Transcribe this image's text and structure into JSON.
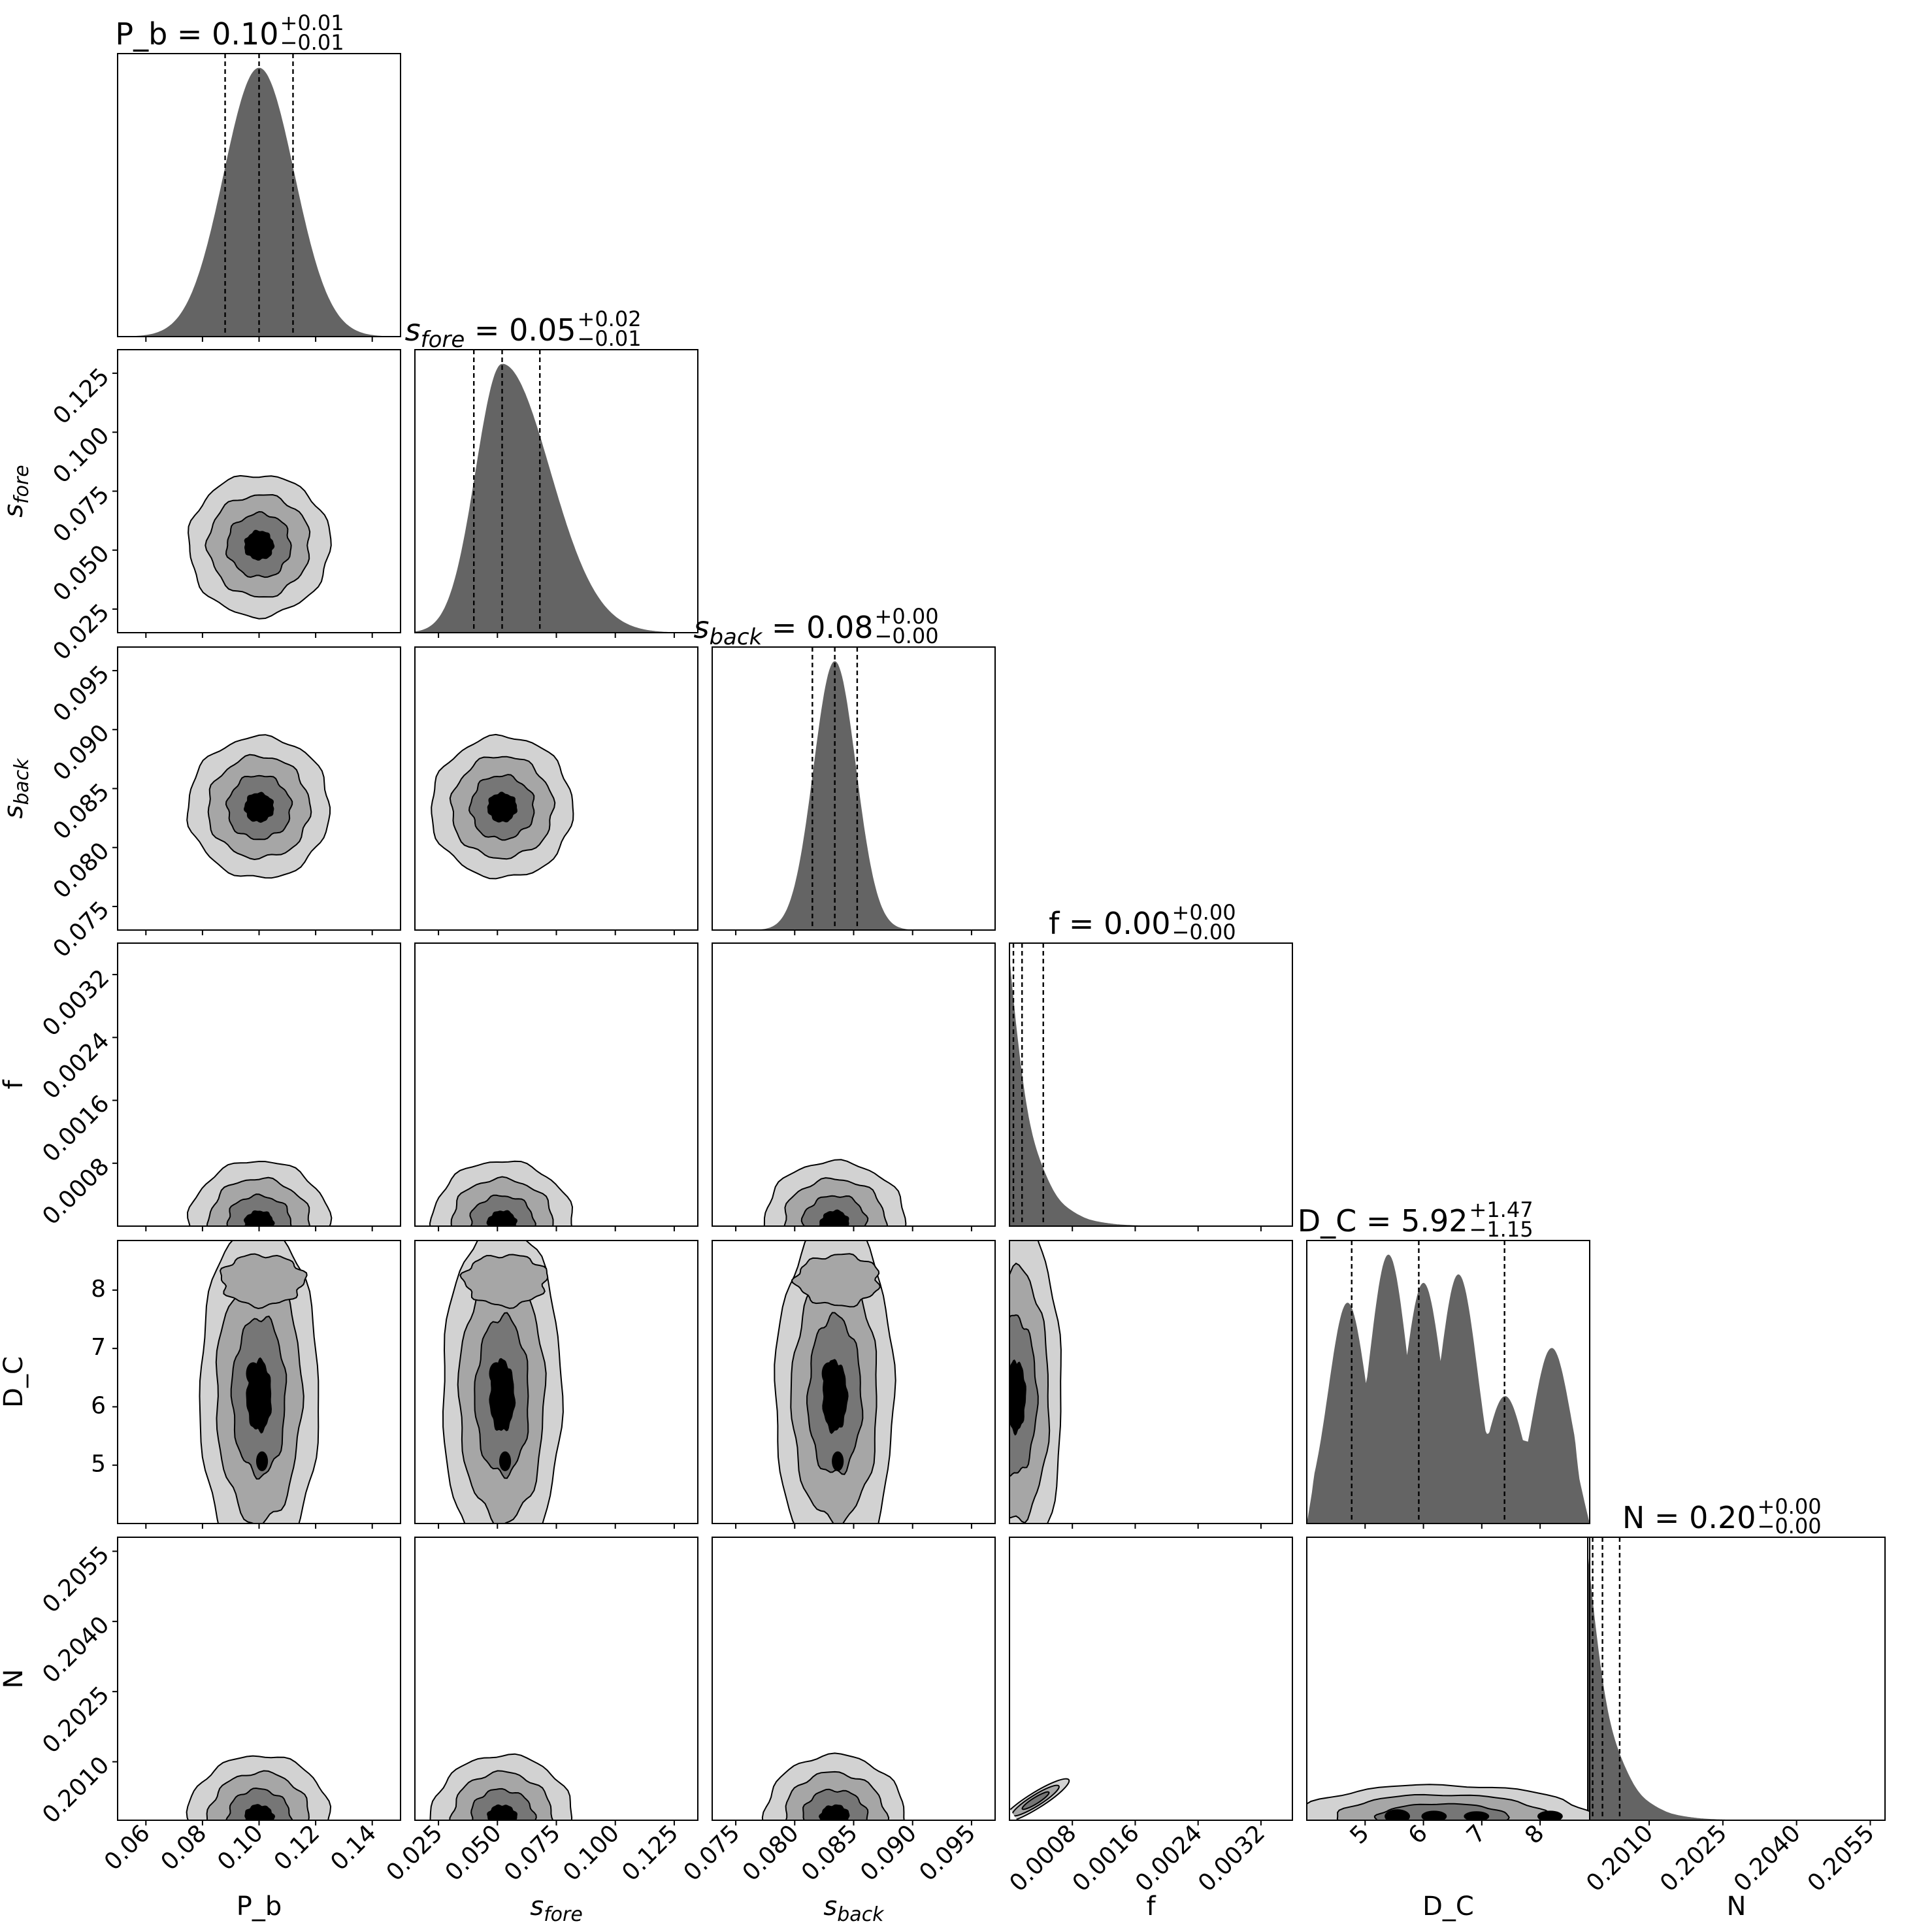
{
  "chart_data": {
    "type": "corner",
    "title": "",
    "colors": {
      "hist_fill": "#646464",
      "contour_levels": [
        "#d2d2d2",
        "#a6a6a6",
        "#767676",
        "#000000"
      ],
      "lines": "#000000",
      "background": "#ffffff"
    },
    "parameters": [
      {
        "key": "P_b",
        "label": "P_b",
        "sub": "",
        "title": {
          "name": "P_b",
          "value": "0.10",
          "plus": "+0.01",
          "minus": "−0.01"
        },
        "range": [
          0.05,
          0.15
        ],
        "ticks": [
          0.06,
          0.08,
          0.1,
          0.12,
          0.14
        ],
        "tick_labels": [
          "0.06",
          "0.08",
          "0.10",
          "0.12",
          "0.14"
        ],
        "quantiles": [
          0.088,
          0.1,
          0.112
        ],
        "mean": 0.1,
        "sd": 0.0125,
        "hist": "gauss"
      },
      {
        "key": "s_fore",
        "label": "s",
        "sub": "fore",
        "title": {
          "name": "s",
          "sub": "fore",
          "value": "0.05",
          "plus": "+0.02",
          "minus": "−0.01"
        },
        "range": [
          0.015,
          0.135
        ],
        "ticks": [
          0.025,
          0.05,
          0.075,
          0.1,
          0.125
        ],
        "tick_labels": [
          "0.025",
          "0.050",
          "0.075",
          "0.100",
          "0.125"
        ],
        "quantiles": [
          0.04,
          0.052,
          0.068
        ],
        "mean": 0.052,
        "sd": 0.014,
        "hist": "skew"
      },
      {
        "key": "s_back",
        "label": "s",
        "sub": "back",
        "title": {
          "name": "s",
          "sub": "back",
          "value": "0.08",
          "plus": "+0.00",
          "minus": "−0.00"
        },
        "range": [
          0.073,
          0.097
        ],
        "ticks": [
          0.075,
          0.08,
          0.085,
          0.09,
          0.095
        ],
        "tick_labels": [
          "0.075",
          "0.080",
          "0.085",
          "0.090",
          "0.095"
        ],
        "quantiles": [
          0.0815,
          0.0834,
          0.0853
        ],
        "mean": 0.0834,
        "sd": 0.0018,
        "hist": "gauss"
      },
      {
        "key": "f",
        "label": "f",
        "sub": "",
        "title": {
          "name": "f",
          "value": "0.00",
          "plus": "+0.00",
          "minus": "−0.00"
        },
        "range": [
          0.0,
          0.0036
        ],
        "ticks": [
          0.0008,
          0.0016,
          0.0024,
          0.0032
        ],
        "tick_labels": [
          "0.0008",
          "0.0016",
          "0.0024",
          "0.0032"
        ],
        "quantiles": [
          5e-05,
          0.00016,
          0.00043
        ],
        "mean": 0.0,
        "sd": 0.0004,
        "hist": "decay"
      },
      {
        "key": "D_C",
        "label": "D_C",
        "sub": "",
        "title": {
          "name": "D_C",
          "value": "5.92",
          "plus": "+1.47",
          "minus": "−1.15"
        },
        "range": [
          4.0,
          8.85
        ],
        "ticks": [
          5,
          6,
          7,
          8
        ],
        "tick_labels": [
          "5",
          "6",
          "7",
          "8"
        ],
        "quantiles": [
          4.77,
          5.92,
          7.39
        ],
        "mean": 6.0,
        "sd": 1.3,
        "hist": "multi"
      },
      {
        "key": "N",
        "label": "N",
        "sub": "",
        "title": {
          "name": "N",
          "value": "0.20",
          "plus": "+0.00",
          "minus": "−0.00"
        },
        "range": [
          0.19975,
          0.2058
        ],
        "ticks": [
          0.201,
          0.2025,
          0.204,
          0.2055
        ],
        "tick_labels": [
          "0.2010",
          "0.2025",
          "0.2040",
          "0.2055"
        ],
        "quantiles": [
          0.19985,
          0.20005,
          0.2004
        ],
        "mean": 0.19975,
        "sd": 0.0005,
        "hist": "decay"
      }
    ],
    "d_c_modes": [
      {
        "x": 4.7,
        "h": 0.78
      },
      {
        "x": 5.4,
        "h": 0.95
      },
      {
        "x": 6.0,
        "h": 0.85
      },
      {
        "x": 6.6,
        "h": 0.88
      },
      {
        "x": 7.4,
        "h": 0.45
      },
      {
        "x": 8.2,
        "h": 0.62
      }
    ]
  }
}
